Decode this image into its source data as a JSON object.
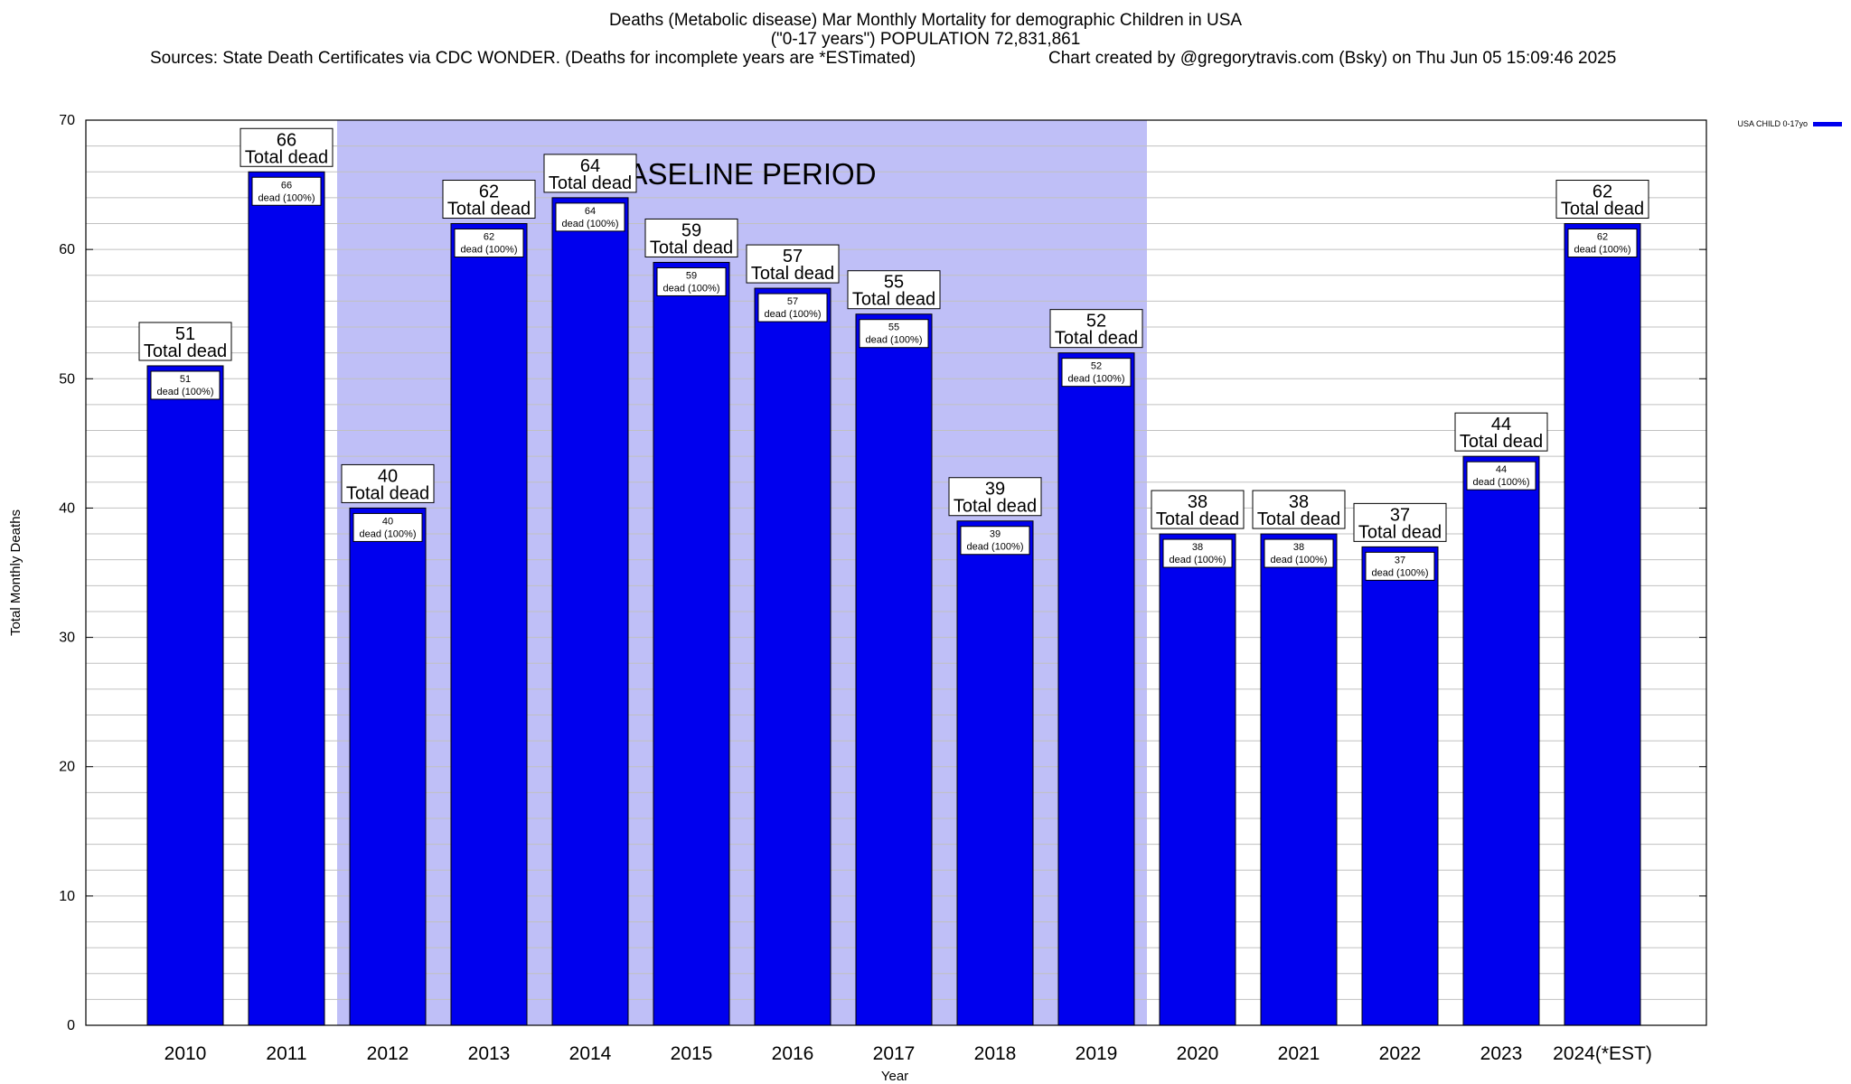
{
  "header": {
    "title_line1": "Deaths (Metabolic disease) Mar Monthly Mortality for demographic Children in USA",
    "title_line2": "(\"0-17 years\") POPULATION 72,831,861",
    "sources": "Sources: State Death Certificates via CDC WONDER. (Deaths for incomplete years are *ESTimated)",
    "credit": "Chart created by @gregorytravis.com (Bsky) on Thu Jun 05 15:09:46 2025"
  },
  "colors": {
    "bar": "#0000ee",
    "baseline_shade": "#bfbff7",
    "grid": "#c0c0c0"
  },
  "chart_data": {
    "type": "bar",
    "categories": [
      "2010",
      "2011",
      "2012",
      "2013",
      "2014",
      "2015",
      "2016",
      "2017",
      "2018",
      "2019",
      "2020",
      "2021",
      "2022",
      "2023",
      "2024(*EST)"
    ],
    "series": [
      {
        "name": "USA CHILD 0-17yo",
        "values": [
          51,
          66,
          40,
          62,
          64,
          59,
          57,
          55,
          39,
          52,
          38,
          38,
          37,
          44,
          62
        ]
      }
    ],
    "xlabel": "Year",
    "ylabel": "Total Monthly Deaths",
    "ylim": [
      0,
      70
    ],
    "yticks": [
      0,
      10,
      20,
      30,
      40,
      50,
      60,
      70
    ],
    "grid": true,
    "legend_position": "top-right",
    "annotation": {
      "text": "BASELINE PERIOD",
      "range": [
        "2012",
        "2019"
      ]
    },
    "label_total": "Total dead",
    "label_dead": "dead (100%)"
  }
}
